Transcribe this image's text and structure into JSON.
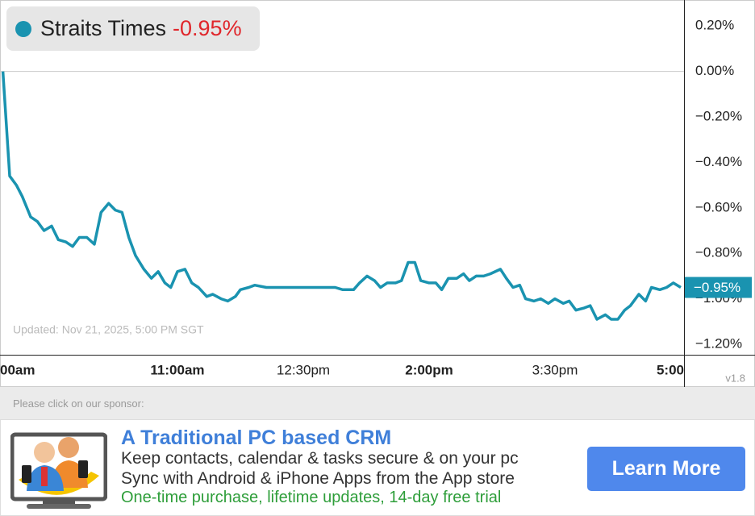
{
  "chart_data": {
    "type": "line",
    "series": [
      {
        "name": "Straits Times",
        "color": "#1a93b0",
        "x": [
          8.92,
          9.0,
          9.08,
          9.15,
          9.25,
          9.33,
          9.41,
          9.5,
          9.58,
          9.67,
          9.75,
          9.83,
          9.92,
          10.01,
          10.09,
          10.18,
          10.26,
          10.34,
          10.42,
          10.5,
          10.6,
          10.69,
          10.77,
          10.85,
          10.92,
          11.0,
          11.09,
          11.17,
          11.25,
          11.35,
          11.42,
          11.52,
          11.6,
          11.69,
          11.75,
          11.85,
          11.92,
          12.06,
          12.46,
          12.88,
          12.97,
          13.1,
          13.17,
          13.26,
          13.35,
          13.42,
          13.5,
          13.6,
          13.67,
          13.75,
          13.83,
          13.9,
          14.0,
          14.08,
          14.15,
          14.23,
          14.33,
          14.41,
          14.48,
          14.56,
          14.65,
          14.73,
          14.85,
          14.92,
          15.0,
          15.08,
          15.15,
          15.25,
          15.33,
          15.42,
          15.5,
          15.6,
          15.67,
          15.75,
          15.85,
          15.92,
          16.0,
          16.1,
          16.17,
          16.25,
          16.33,
          16.4,
          16.5,
          16.58,
          16.65,
          16.75,
          16.83,
          16.91,
          17.0
        ],
        "values": [
          0,
          -0.46,
          -0.5,
          -0.55,
          -0.64,
          -0.66,
          -0.7,
          -0.68,
          -0.74,
          -0.75,
          -0.77,
          -0.73,
          -0.73,
          -0.76,
          -0.62,
          -0.58,
          -0.61,
          -0.62,
          -0.73,
          -0.81,
          -0.87,
          -0.91,
          -0.88,
          -0.93,
          -0.95,
          -0.88,
          -0.87,
          -0.93,
          -0.95,
          -0.99,
          -0.98,
          -1.0,
          -1.01,
          -0.99,
          -0.96,
          -0.95,
          -0.94,
          -0.95,
          -0.95,
          -0.95,
          -0.96,
          -0.96,
          -0.93,
          -0.9,
          -0.92,
          -0.95,
          -0.93,
          -0.93,
          -0.92,
          -0.84,
          -0.84,
          -0.92,
          -0.93,
          -0.93,
          -0.96,
          -0.91,
          -0.91,
          -0.89,
          -0.92,
          -0.9,
          -0.9,
          -0.89,
          -0.87,
          -0.91,
          -0.95,
          -0.94,
          -1.0,
          -1.01,
          -1.0,
          -1.02,
          -1.0,
          -1.02,
          -1.01,
          -1.05,
          -1.04,
          -1.03,
          -1.09,
          -1.07,
          -1.09,
          -1.09,
          -1.05,
          -1.03,
          -0.98,
          -1.01,
          -0.95,
          -0.96,
          -0.95,
          -0.93,
          -0.95
        ]
      }
    ],
    "change_label": "-0.95%",
    "change_color": "#e0262b",
    "current": -0.95,
    "current_label": "−0.95%",
    "xlim": [
      8.885,
      17.038
    ],
    "xticks": [
      {
        "value": 9,
        "label": "00am"
      },
      {
        "value": 11,
        "label": "11:00am"
      },
      {
        "value": 12.5,
        "label": "12:30pm"
      },
      {
        "value": 14,
        "label": "2:00pm"
      },
      {
        "value": 15.5,
        "label": "3:30pm"
      },
      {
        "value": 17,
        "label": "5:00"
      }
    ],
    "ylim": [
      -1.246,
      0.314
    ],
    "yticks": [
      {
        "value": 0.2,
        "label": "0.20%"
      },
      {
        "value": 0,
        "label": "0.00%"
      },
      {
        "value": -0.2,
        "label": "−0.20%"
      },
      {
        "value": -0.4,
        "label": "−0.40%"
      },
      {
        "value": -0.6,
        "label": "−0.60%"
      },
      {
        "value": -0.8,
        "label": "−0.80%"
      },
      {
        "value": -1.0,
        "label": "−1.00%"
      },
      {
        "value": -1.2,
        "label": "−1.20%"
      }
    ],
    "zero_line": true,
    "note": "Updated: Nov 21, 2025, 5:00 PM SGT",
    "version": "v1.8"
  },
  "sponsor": {
    "prompt": "Please click on our sponsor:",
    "title": "A Traditional PC based CRM",
    "lines": [
      "Keep contacts, calendar & tasks secure & on your pc",
      "Sync with Android & iPhone Apps from the App store"
    ],
    "offer": "One-time purchase, lifetime updates, 14-day free trial",
    "button": "Learn More"
  }
}
